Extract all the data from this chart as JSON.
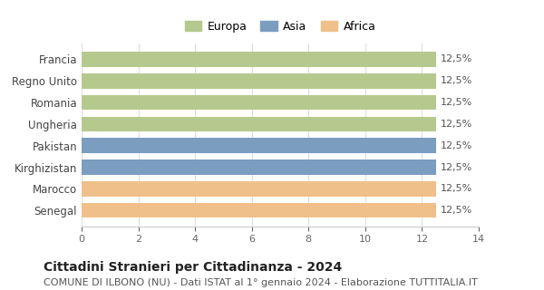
{
  "categories": [
    "Francia",
    "Regno Unito",
    "Romania",
    "Ungheria",
    "Pakistan",
    "Kirghizistan",
    "Marocco",
    "Senegal"
  ],
  "bar_colors": [
    "#b5c98e",
    "#b5c98e",
    "#b5c98e",
    "#b5c98e",
    "#7b9dc0",
    "#7b9dc0",
    "#f0c08a",
    "#f0c08a"
  ],
  "legend_labels": [
    "Europa",
    "Asia",
    "Africa"
  ],
  "legend_colors": [
    "#b5c98e",
    "#7b9dc0",
    "#f0c08a"
  ],
  "value_labels": [
    "12,5%",
    "12,5%",
    "12,5%",
    "12,5%",
    "12,5%",
    "12,5%",
    "12,5%",
    "12,5%"
  ],
  "bar_value": 12.5,
  "xlim": [
    0,
    14
  ],
  "xticks": [
    0,
    2,
    4,
    6,
    8,
    10,
    12,
    14
  ],
  "title": "Cittadini Stranieri per Cittadinanza - 2024",
  "subtitle": "COMUNE DI ILBONO (NU) - Dati ISTAT al 1° gennaio 2024 - Elaborazione TUTTITALIA.IT",
  "title_fontsize": 10,
  "subtitle_fontsize": 8,
  "background_color": "#ffffff",
  "grid_color": "#dddddd"
}
